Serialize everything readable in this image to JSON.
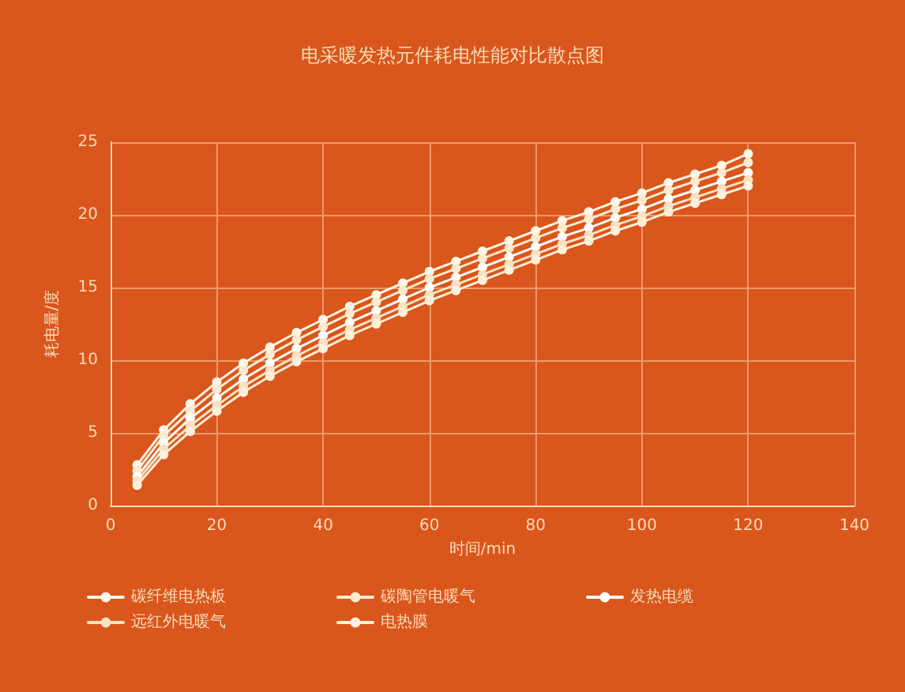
{
  "chart_data": {
    "type": "line",
    "title": "电采暖发热元件耗电性能对比散点图",
    "xlabel": "时间/min",
    "ylabel": "耗电量/度",
    "x": [
      5,
      10,
      15,
      20,
      25,
      30,
      35,
      40,
      45,
      50,
      55,
      60,
      65,
      70,
      75,
      80,
      85,
      90,
      95,
      100,
      105,
      110,
      115,
      120
    ],
    "series": [
      {
        "name": "碳纤维电热板",
        "color": "#fff6e6",
        "values": [
          2.8,
          5.2,
          7.0,
          8.5,
          9.8,
          10.9,
          11.9,
          12.8,
          13.7,
          14.5,
          15.3,
          16.1,
          16.8,
          17.5,
          18.2,
          18.9,
          19.6,
          20.2,
          20.9,
          21.5,
          22.2,
          22.8,
          23.4,
          24.2
        ]
      },
      {
        "name": "碳陶管电暖气",
        "color": "#fdebd0",
        "values": [
          2.4,
          4.8,
          6.5,
          8.0,
          9.3,
          10.4,
          11.4,
          12.3,
          13.2,
          14.0,
          14.8,
          15.6,
          16.3,
          17.0,
          17.7,
          18.4,
          19.1,
          19.7,
          20.4,
          21.0,
          21.7,
          22.3,
          22.9,
          23.6
        ]
      },
      {
        "name": "发热电缆",
        "color": "#ffffff",
        "values": [
          2.0,
          4.3,
          6.0,
          7.4,
          8.7,
          9.8,
          10.8,
          11.7,
          12.6,
          13.4,
          14.2,
          15.0,
          15.7,
          16.4,
          17.1,
          17.8,
          18.5,
          19.1,
          19.8,
          20.4,
          21.1,
          21.7,
          22.3,
          22.9
        ]
      },
      {
        "name": "远红外电暖气",
        "color": "#f9e2c2",
        "values": [
          1.7,
          3.9,
          5.5,
          6.9,
          8.2,
          9.3,
          10.3,
          11.2,
          12.1,
          12.9,
          13.7,
          14.5,
          15.2,
          15.9,
          16.6,
          17.3,
          18.0,
          18.6,
          19.3,
          19.9,
          20.6,
          21.2,
          21.8,
          22.4
        ]
      },
      {
        "name": "电热膜",
        "color": "#fff0dc",
        "values": [
          1.4,
          3.5,
          5.1,
          6.5,
          7.8,
          8.9,
          9.9,
          10.8,
          11.7,
          12.5,
          13.3,
          14.1,
          14.8,
          15.5,
          16.2,
          16.9,
          17.6,
          18.2,
          18.9,
          19.5,
          20.2,
          20.8,
          21.4,
          22.0
        ]
      }
    ],
    "xlim": [
      0,
      140
    ],
    "xticks": [
      0,
      20,
      40,
      60,
      80,
      100,
      120,
      140
    ],
    "ylim": [
      0,
      25
    ],
    "yticks": [
      0,
      5,
      10,
      15,
      20,
      25
    ],
    "grid": true,
    "legend": "bottom",
    "marker": "circle",
    "line_style": "solid"
  }
}
